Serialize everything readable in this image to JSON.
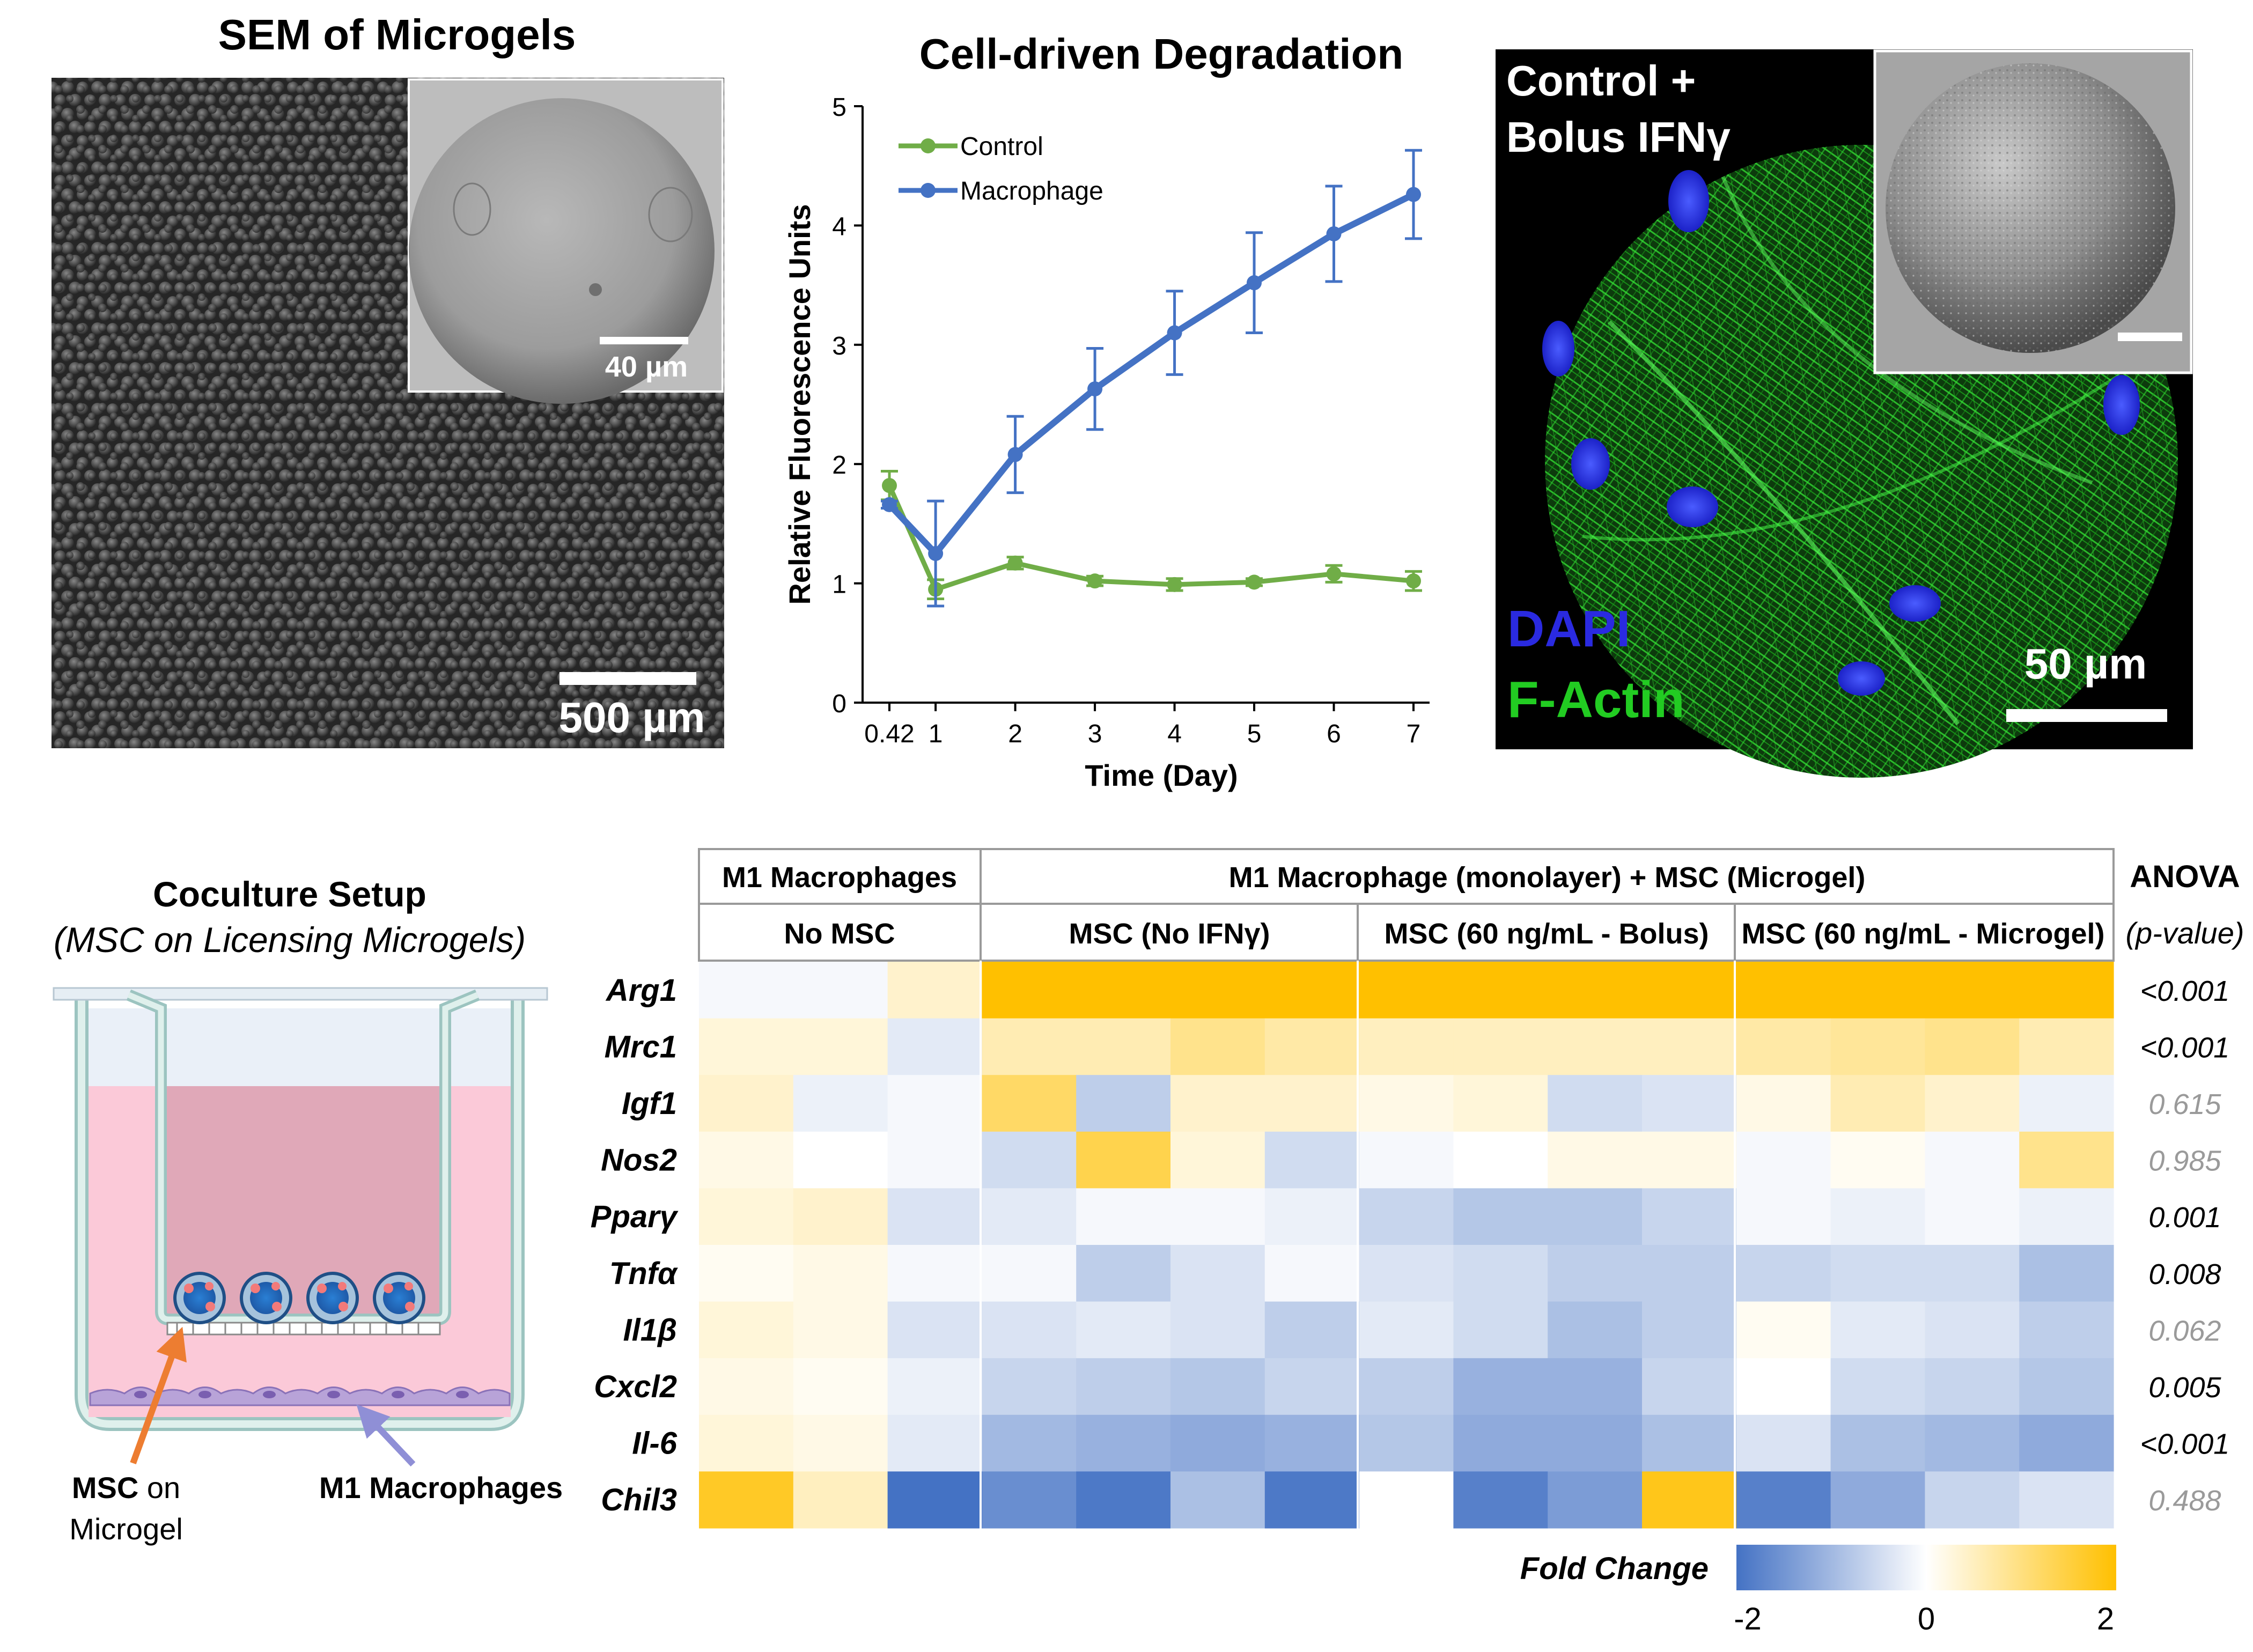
{
  "sem_panel": {
    "title": "SEM of Microgels",
    "scale_label": "500 µm",
    "inset_scale_label": "40 µm"
  },
  "chart_panel": {
    "title": "Cell-driven Degradation",
    "chart_data": {
      "type": "line",
      "title": "Cell-driven Degradation",
      "xlabel": "Time (Day)",
      "ylabel": "Relative Fluorescence Units",
      "x": [
        0.42,
        1,
        2,
        3,
        4,
        5,
        6,
        7
      ],
      "x_tick_labels": [
        "0.42",
        "1",
        "2",
        "3",
        "4",
        "5",
        "6",
        "7"
      ],
      "ylim": [
        0,
        5
      ],
      "y_ticks": [
        0,
        1,
        2,
        3,
        4,
        5
      ],
      "legend_position": "top-left",
      "series": [
        {
          "name": "Control",
          "color": "#70ad47",
          "values": [
            1.82,
            0.95,
            1.17,
            1.02,
            0.99,
            1.01,
            1.08,
            1.02
          ],
          "errors": [
            0.12,
            0.08,
            0.05,
            0.04,
            0.05,
            0.03,
            0.07,
            0.08
          ]
        },
        {
          "name": "Macrophage",
          "color": "#4472c4",
          "values": [
            1.66,
            1.25,
            2.08,
            2.63,
            3.1,
            3.52,
            3.93,
            4.26
          ],
          "errors": [
            0.03,
            0.44,
            0.32,
            0.34,
            0.35,
            0.42,
            0.4,
            0.37
          ]
        }
      ]
    }
  },
  "confocal_panel": {
    "title_line1": "Control +",
    "title_line2": "Bolus IFNγ",
    "stain1": "DAPI",
    "stain2": "F-Actin",
    "scale_label": "50 µm",
    "stain1_color": "#2a2ae0",
    "stain2_color": "#22cc22"
  },
  "coculture_panel": {
    "title": "Coculture Setup",
    "subtitle": "(MSC on Licensing Microgels)",
    "label_msc_bold": "MSC",
    "label_msc_rest": " on",
    "label_msc_line2": "Microgel",
    "label_macrophages": "M1 Macrophages",
    "arrow_msc_color": "#ed7d31",
    "arrow_mac_color": "#8f8fd6"
  },
  "heatmap_panel": {
    "header_top": {
      "group1": "M1 Macrophages",
      "group2": "M1 Macrophage (monolayer) + MSC (Microgel)",
      "anova": "ANOVA"
    },
    "header_sub": {
      "col1": "No MSC",
      "col2": "MSC (No IFNγ)",
      "col3": "MSC (60 ng/mL - Bolus)",
      "col4": "MSC (60 ng/mL - Microgel)",
      "pvalue": "(p-value)"
    },
    "genes": [
      "Arg1",
      "Mrc1",
      "Igf1",
      "Nos2",
      "Pparγ",
      "Tnfα",
      "Il1β",
      "Cxcl2",
      "Il-6",
      "Chil3"
    ],
    "pvalues": [
      "<0.001",
      "<0.001",
      "0.615",
      "0.985",
      "0.001",
      "0.008",
      "0.062",
      "0.005",
      "<0.001",
      "0.488"
    ],
    "pvalue_significant": [
      true,
      true,
      false,
      false,
      true,
      true,
      false,
      true,
      true,
      false
    ],
    "fold_change": [
      [
        -0.1,
        -0.1,
        0.4,
        2,
        2,
        2,
        2,
        2,
        2,
        2,
        2,
        2,
        2,
        2,
        2
      ],
      [
        0.3,
        0.3,
        -0.3,
        0.6,
        0.6,
        0.9,
        0.7,
        0.5,
        0.5,
        0.5,
        0.5,
        0.7,
        0.8,
        0.9,
        0.6
      ],
      [
        0.4,
        -0.2,
        -0.1,
        1.2,
        -0.7,
        0.4,
        0.4,
        0.2,
        0.3,
        -0.5,
        -0.4,
        0.2,
        0.6,
        0.4,
        -0.2
      ],
      [
        0.2,
        0,
        -0.1,
        -0.5,
        1.4,
        0.3,
        -0.5,
        -0.1,
        0,
        0.2,
        0.2,
        -0.1,
        0.1,
        -0.1,
        0.9
      ],
      [
        0.3,
        0.4,
        -0.4,
        -0.3,
        -0.1,
        -0.1,
        -0.2,
        -0.6,
        -0.8,
        -0.8,
        -0.6,
        -0.1,
        -0.2,
        -0.1,
        -0.2
      ],
      [
        0.1,
        0.2,
        -0.1,
        -0.1,
        -0.7,
        -0.4,
        -0.1,
        -0.4,
        -0.5,
        -0.7,
        -0.7,
        -0.6,
        -0.5,
        -0.5,
        -0.9
      ],
      [
        0.3,
        0.2,
        -0.4,
        -0.4,
        -0.3,
        -0.4,
        -0.7,
        -0.3,
        -0.5,
        -0.9,
        -0.7,
        0.1,
        -0.3,
        -0.4,
        -0.7
      ],
      [
        0.2,
        0.1,
        -0.2,
        -0.6,
        -0.7,
        -0.8,
        -0.6,
        -0.7,
        -1.1,
        -1.1,
        -0.6,
        0,
        -0.5,
        -0.6,
        -0.8
      ],
      [
        0.3,
        0.2,
        -0.3,
        -1.0,
        -1.1,
        -1.2,
        -1.1,
        -0.8,
        -1.2,
        -1.2,
        -0.9,
        -0.4,
        -0.9,
        -1.0,
        -1.2
      ],
      [
        1.7,
        0.5,
        -2,
        -1.6,
        -1.9,
        -0.9,
        -1.9,
        null,
        -1.8,
        -1.4,
        1.8,
        -1.8,
        -1.2,
        -0.6,
        -0.4
      ]
    ],
    "colorbar": {
      "label": "Fold Change",
      "tick_min": "-2",
      "tick_mid": "0",
      "tick_max": "2",
      "color_low": "#4472c4",
      "color_mid": "#ffffff",
      "color_high": "#ffc000"
    }
  }
}
